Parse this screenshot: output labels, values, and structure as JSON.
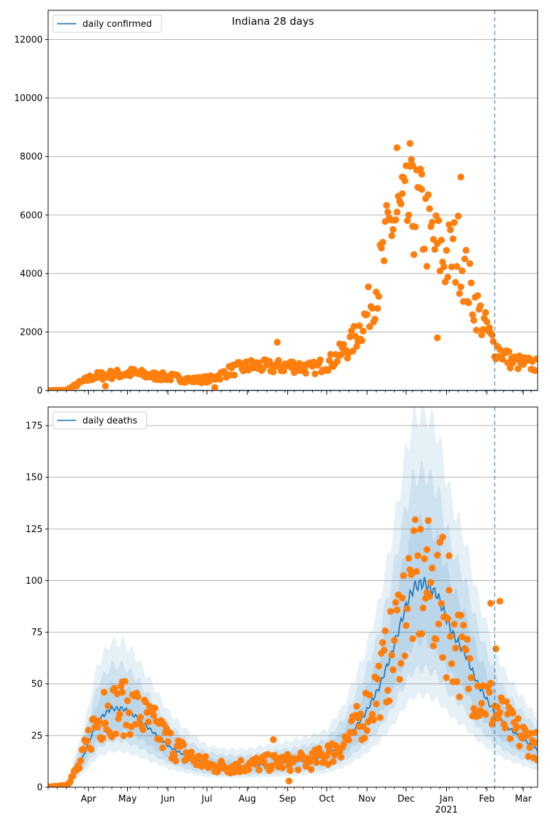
{
  "figure_title": "Indiana 28 days",
  "colors": {
    "model": "#1f77b4",
    "observed": "#ff7f0e",
    "grid": "#b0b0b0",
    "band": "#1f77b4"
  },
  "x_axis": {
    "month_ticks": [
      "Apr",
      "May",
      "Jun",
      "Jul",
      "Aug",
      "Sep",
      "Oct",
      "Nov",
      "Dec",
      "Jan",
      "Feb",
      "Mar"
    ],
    "year_label": "2021",
    "forecast_line_date": "2021-02-07"
  },
  "chart_data": [
    {
      "type": "scatter",
      "title": "Indiana 28 days",
      "legend": "daily confirmed",
      "legend_position": "upper-left",
      "xlim": [
        "2020-03-01",
        "2021-03-12"
      ],
      "ylim": [
        0,
        13000
      ],
      "yticks": [
        0,
        2000,
        4000,
        6000,
        8000,
        10000,
        12000
      ],
      "grid": "horizontal",
      "observed_anchors": [
        [
          "2020-03-01",
          0
        ],
        [
          "2020-03-15",
          10
        ],
        [
          "2020-03-25",
          250
        ],
        [
          "2020-04-05",
          480
        ],
        [
          "2020-04-20",
          550
        ],
        [
          "2020-05-05",
          600
        ],
        [
          "2020-05-20",
          500
        ],
        [
          "2020-06-05",
          450
        ],
        [
          "2020-06-20",
          350
        ],
        [
          "2020-07-05",
          400
        ],
        [
          "2020-07-20",
          700
        ],
        [
          "2020-08-05",
          850
        ],
        [
          "2020-08-20",
          800
        ],
        [
          "2020-09-05",
          850
        ],
        [
          "2020-09-20",
          750
        ],
        [
          "2020-10-05",
          1000
        ],
        [
          "2020-10-20",
          1600
        ],
        [
          "2020-10-31",
          2500
        ],
        [
          "2020-11-10",
          3800
        ],
        [
          "2020-11-20",
          5800
        ],
        [
          "2020-12-01",
          6000
        ],
        [
          "2020-12-10",
          6200
        ],
        [
          "2020-12-20",
          5200
        ],
        [
          "2020-12-30",
          4500
        ],
        [
          "2021-01-10",
          4800
        ],
        [
          "2021-01-20",
          3300
        ],
        [
          "2021-01-30",
          2200
        ],
        [
          "2021-02-07",
          1500
        ],
        [
          "2021-02-20",
          1000
        ],
        [
          "2021-03-12",
          850
        ]
      ],
      "spread": 0.18,
      "outliers": [
        [
          "2020-11-24",
          8300
        ],
        [
          "2020-12-04",
          8450
        ],
        [
          "2020-12-05",
          7900
        ],
        [
          "2020-12-06",
          7700
        ],
        [
          "2020-12-13",
          7400
        ],
        [
          "2021-01-12",
          7300
        ],
        [
          "2020-11-28",
          7300
        ],
        [
          "2020-12-25",
          1800
        ],
        [
          "2021-02-01",
          2350
        ],
        [
          "2020-08-24",
          1650
        ],
        [
          "2020-07-07",
          100
        ],
        [
          "2020-04-14",
          150
        ]
      ]
    },
    {
      "type": "scatter",
      "legend": "daily deaths",
      "legend_position": "upper-left",
      "xlim": [
        "2020-03-01",
        "2021-03-12"
      ],
      "ylim": [
        0,
        184
      ],
      "yticks": [
        0,
        25,
        50,
        75,
        100,
        125,
        150,
        175
      ],
      "grid": "horizontal",
      "model_anchors": [
        [
          "2020-03-01",
          0
        ],
        [
          "2020-03-15",
          1
        ],
        [
          "2020-03-28",
          15
        ],
        [
          "2020-04-08",
          32
        ],
        [
          "2020-04-18",
          38
        ],
        [
          "2020-04-28",
          38
        ],
        [
          "2020-05-08",
          34
        ],
        [
          "2020-05-20",
          27
        ],
        [
          "2020-06-01",
          20
        ],
        [
          "2020-06-15",
          15
        ],
        [
          "2020-07-01",
          11
        ],
        [
          "2020-07-15",
          10
        ],
        [
          "2020-08-01",
          10
        ],
        [
          "2020-08-15",
          11
        ],
        [
          "2020-09-01",
          12
        ],
        [
          "2020-09-15",
          13
        ],
        [
          "2020-10-01",
          15
        ],
        [
          "2020-10-15",
          22
        ],
        [
          "2020-10-30",
          35
        ],
        [
          "2020-11-10",
          48
        ],
        [
          "2020-11-20",
          65
        ],
        [
          "2020-12-01",
          88
        ],
        [
          "2020-12-07",
          97
        ],
        [
          "2020-12-15",
          99
        ],
        [
          "2020-12-25",
          93
        ],
        [
          "2021-01-05",
          75
        ],
        [
          "2021-01-15",
          65
        ],
        [
          "2021-01-25",
          50
        ],
        [
          "2021-02-05",
          38
        ],
        [
          "2021-02-15",
          30
        ],
        [
          "2021-02-25",
          25
        ],
        [
          "2021-03-12",
          18
        ]
      ],
      "band_scales": [
        [
          0.45,
          1.85
        ],
        [
          0.58,
          1.55
        ],
        [
          0.72,
          1.3
        ]
      ],
      "observed_anchors": [
        [
          "2020-03-01",
          0
        ],
        [
          "2020-03-15",
          1
        ],
        [
          "2020-03-25",
          10
        ],
        [
          "2020-04-05",
          30
        ],
        [
          "2020-04-20",
          38
        ],
        [
          "2020-05-05",
          38
        ],
        [
          "2020-05-20",
          30
        ],
        [
          "2020-06-05",
          20
        ],
        [
          "2020-06-20",
          14
        ],
        [
          "2020-07-05",
          10
        ],
        [
          "2020-07-20",
          10
        ],
        [
          "2020-08-05",
          11
        ],
        [
          "2020-08-20",
          12
        ],
        [
          "2020-09-05",
          12
        ],
        [
          "2020-09-20",
          13
        ],
        [
          "2020-10-05",
          17
        ],
        [
          "2020-10-20",
          25
        ],
        [
          "2020-11-05",
          42
        ],
        [
          "2020-11-20",
          65
        ],
        [
          "2020-12-01",
          92
        ],
        [
          "2020-12-12",
          98
        ],
        [
          "2020-12-22",
          95
        ],
        [
          "2021-01-05",
          75
        ],
        [
          "2021-01-15",
          60
        ],
        [
          "2021-01-28",
          45
        ],
        [
          "2021-02-07",
          38
        ],
        [
          "2021-02-20",
          28
        ],
        [
          "2021-03-12",
          20
        ]
      ],
      "spread": 0.22,
      "outliers": [
        [
          "2021-02-04",
          89
        ],
        [
          "2021-02-11",
          90
        ],
        [
          "2020-12-29",
          121
        ],
        [
          "2020-12-17",
          115
        ],
        [
          "2021-01-03",
          112
        ],
        [
          "2020-09-02",
          3
        ],
        [
          "2020-10-02",
          20
        ],
        [
          "2020-08-21",
          23
        ],
        [
          "2020-04-13",
          46
        ],
        [
          "2020-04-27",
          51
        ],
        [
          "2021-02-08",
          67
        ]
      ]
    }
  ]
}
